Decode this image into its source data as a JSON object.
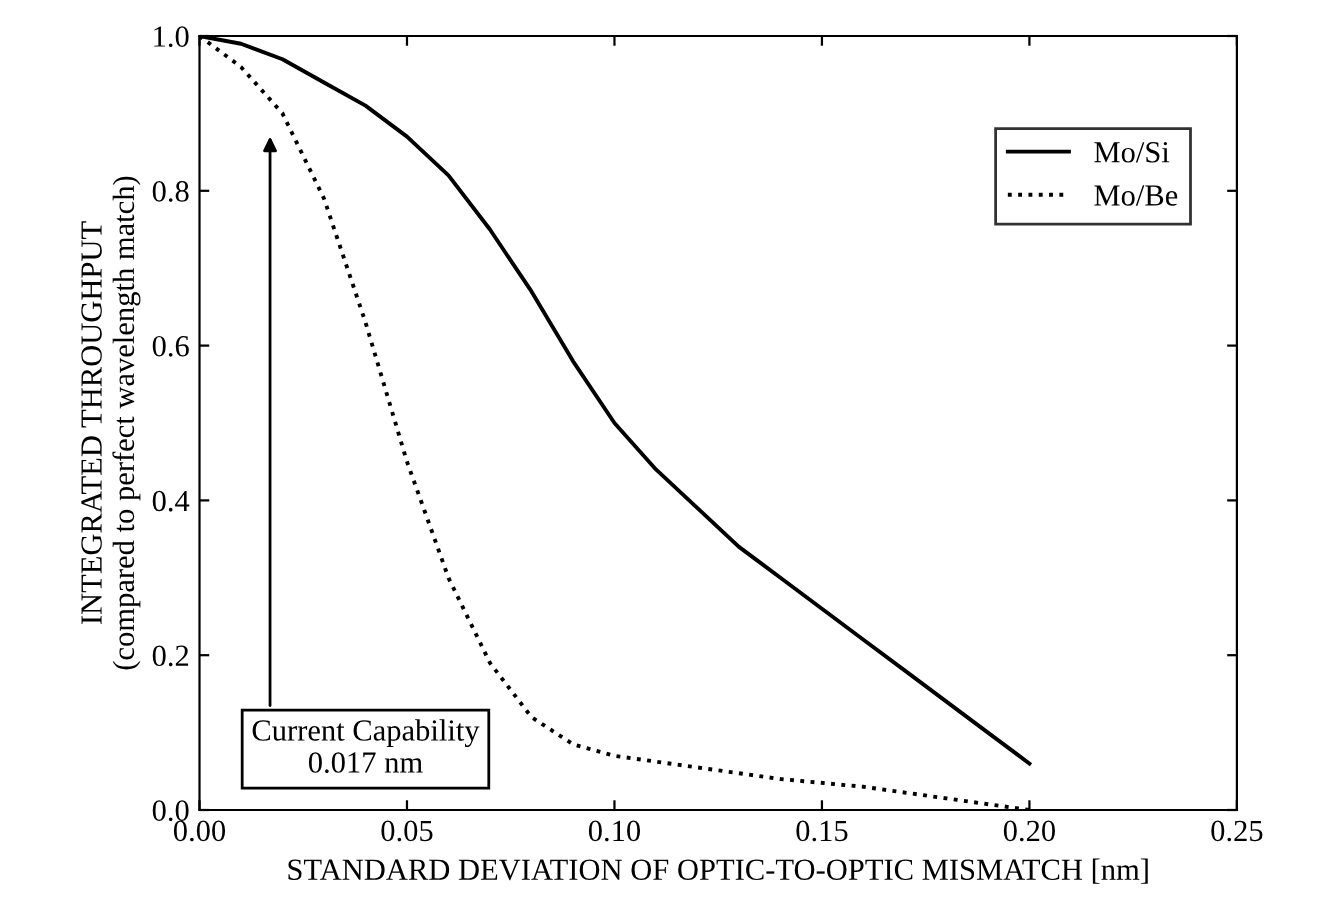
{
  "chart_data": {
    "type": "line",
    "xlabel": "STANDARD DEVIATION OF OPTIC-TO-OPTIC MISMATCH [nm]",
    "ylabel": "INTEGRATED THROUGHPUT\n(compared to perfect wavelength match)",
    "xlim": [
      0,
      0.25
    ],
    "ylim": [
      0,
      1.0
    ],
    "xticks": [
      {
        "value": 0,
        "label": "0.00"
      },
      {
        "value": 0.05,
        "label": "0.05"
      },
      {
        "value": 0.1,
        "label": "0.10"
      },
      {
        "value": 0.15,
        "label": "0.15"
      },
      {
        "value": 0.2,
        "label": "0.20"
      },
      {
        "value": 0.25,
        "label": "0.25"
      }
    ],
    "yticks": [
      {
        "value": 0,
        "label": "0.0"
      },
      {
        "value": 0.2,
        "label": "0.2"
      },
      {
        "value": 0.4,
        "label": "0.4"
      },
      {
        "value": 0.6,
        "label": "0.6"
      },
      {
        "value": 0.8,
        "label": "0.8"
      },
      {
        "value": 1.0,
        "label": "1.0"
      }
    ],
    "grid": false,
    "legend": "top right",
    "series": [
      {
        "name": "Mo/Si",
        "color": "#000000",
        "line_style": "solid",
        "x": [
          0,
          0.01,
          0.02,
          0.03,
          0.04,
          0.05,
          0.06,
          0.07,
          0.08,
          0.09,
          0.1,
          0.11,
          0.12,
          0.13,
          0.14,
          0.15,
          0.16,
          0.17,
          0.18,
          0.19,
          0.2
        ],
        "values": [
          1.0,
          0.99,
          0.97,
          0.94,
          0.91,
          0.87,
          0.82,
          0.75,
          0.67,
          0.58,
          0.5,
          0.44,
          0.39,
          0.34,
          0.3,
          0.26,
          0.22,
          0.18,
          0.14,
          0.1,
          0.06
        ]
      },
      {
        "name": "Mo/Be",
        "color": "#000000",
        "line_style": "dotted",
        "x": [
          0,
          0.01,
          0.02,
          0.03,
          0.04,
          0.05,
          0.06,
          0.07,
          0.08,
          0.09,
          0.1,
          0.12,
          0.14,
          0.16,
          0.18,
          0.2
        ],
        "values": [
          1.0,
          0.96,
          0.9,
          0.79,
          0.63,
          0.45,
          0.3,
          0.19,
          0.12,
          0.085,
          0.07,
          0.055,
          0.04,
          0.03,
          0.015,
          0.0
        ]
      }
    ],
    "annotations": [
      "Current Capability\n0.017 nm"
    ]
  }
}
